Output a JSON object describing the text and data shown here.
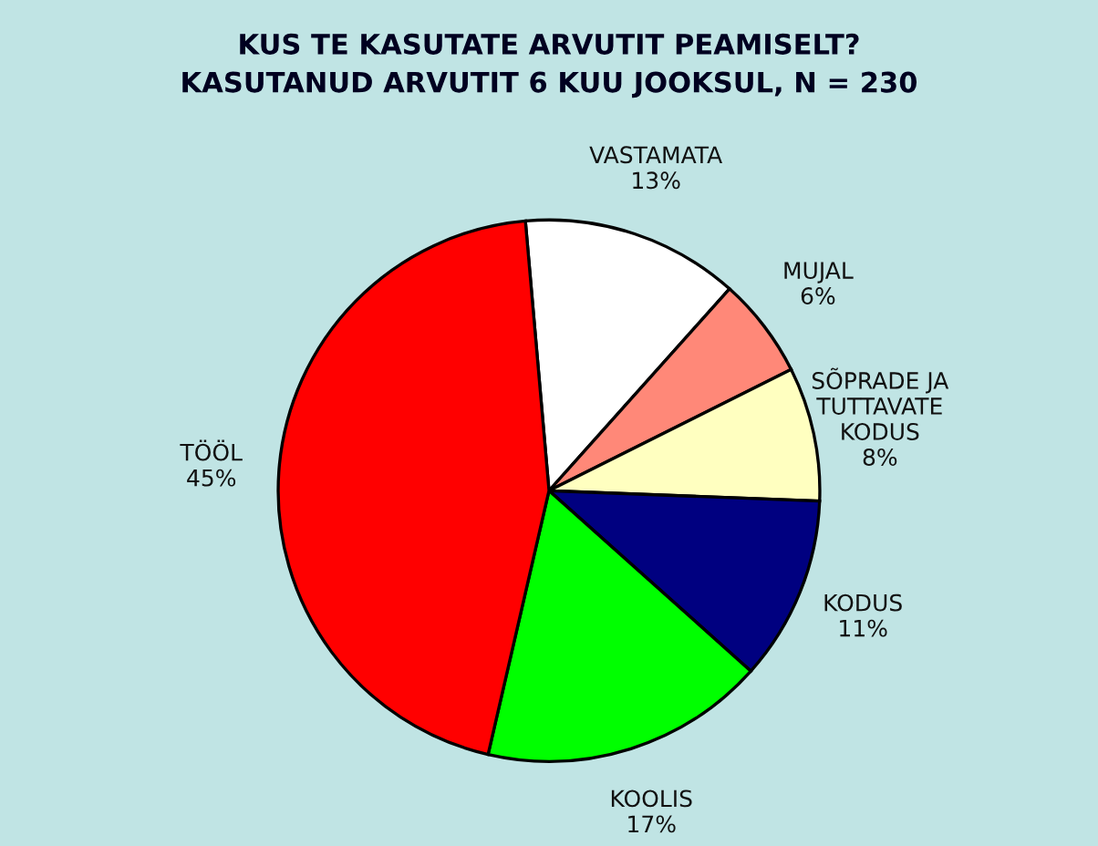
{
  "chart_data": {
    "type": "pie",
    "title": "KUS TE KASUTATE ARVUTIT PEAMISELT?",
    "subtitle": "KASUTANUD ARVUTIT 6 KUU JOOKSUL, N = 230",
    "categories": [
      "VASTAMATA",
      "MUJAL",
      "SÕPRADE JA\nTUTTAVATE\nKODUS",
      "KODUS",
      "KOOLIS",
      "TÖÖL"
    ],
    "values": [
      13,
      6,
      8,
      11,
      17,
      45
    ],
    "value_labels": [
      "13%",
      "6%",
      "8%",
      "11%",
      "17%",
      "45%"
    ],
    "colors": [
      "#ffffff",
      "#ff8878",
      "#ffffc0",
      "#000080",
      "#00ff00",
      "#ff0000"
    ]
  }
}
